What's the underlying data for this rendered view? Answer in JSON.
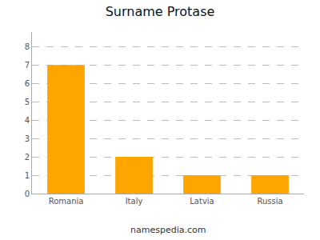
{
  "chart_data": {
    "type": "bar",
    "title": "Surname Protase",
    "categories": [
      "Romania",
      "Italy",
      "Latvia",
      "Russia"
    ],
    "values": [
      7,
      2,
      1,
      1
    ],
    "color": "#FFA500",
    "ylim": [
      0,
      8.8
    ],
    "yticks": [
      0,
      1,
      2,
      3,
      4,
      5,
      6,
      7,
      8
    ],
    "grid": true,
    "annotations": [
      "namespedia.com"
    ]
  }
}
